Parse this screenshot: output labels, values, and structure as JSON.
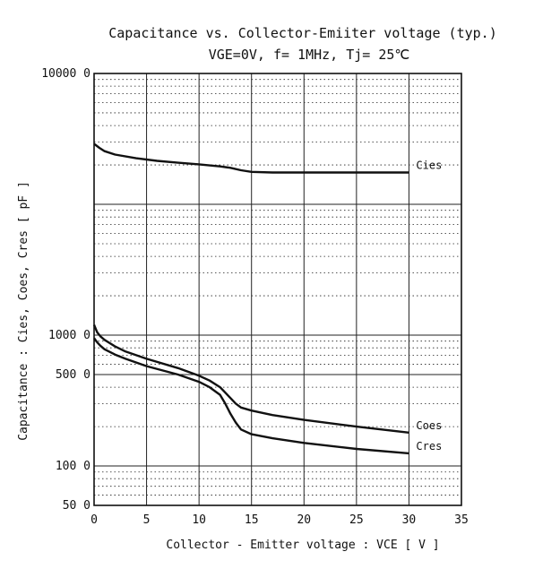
{
  "chart_data": {
    "type": "line",
    "title": "Capacitance vs. Collector-Emiiter voltage (typ.)",
    "subtitle": "VGE=0V, f= 1MHz, Tj= 25℃",
    "xlabel": "Collector - Emitter voltage : VCE [ V ]",
    "ylabel": "Capacitance : Cies, Coes, Cres [ pF ]",
    "xlim": [
      0,
      35
    ],
    "ylim": [
      50,
      100000
    ],
    "yscale": "log",
    "grid": true,
    "x_ticks": [
      0,
      5,
      10,
      15,
      20,
      25,
      30,
      35
    ],
    "x_tick_labels": [
      "0",
      "5",
      "10",
      "15",
      "20",
      "25",
      "30",
      "35"
    ],
    "y_ticks": [
      50,
      100,
      500,
      1000,
      100000
    ],
    "y_tick_labels": [
      "50 0",
      "100 0",
      "500 0",
      "1000 0",
      "10000 0"
    ],
    "series": [
      {
        "name": "Cies",
        "x": [
          0,
          0.5,
          1,
          2,
          4,
          6,
          8,
          10,
          12,
          13,
          14,
          15,
          17,
          20,
          25,
          30
        ],
        "y": [
          29000,
          27000,
          25500,
          24000,
          22500,
          21500,
          20800,
          20200,
          19500,
          19000,
          18200,
          17700,
          17500,
          17500,
          17500,
          17500
        ]
      },
      {
        "name": "Coes",
        "x": [
          0,
          0.3,
          0.6,
          1,
          2,
          3,
          5,
          8,
          10,
          11,
          12,
          13,
          13.5,
          14,
          15,
          17,
          20,
          25,
          30
        ],
        "y": [
          1200,
          1050,
          980,
          920,
          820,
          750,
          660,
          560,
          490,
          450,
          400,
          330,
          300,
          280,
          265,
          245,
          225,
          200,
          180
        ]
      },
      {
        "name": "Cres",
        "x": [
          0,
          0.3,
          0.6,
          1,
          2,
          3,
          5,
          8,
          10,
          11,
          12,
          12.5,
          13,
          13.5,
          14,
          15,
          17,
          20,
          25,
          30
        ],
        "y": [
          950,
          880,
          830,
          780,
          710,
          660,
          580,
          500,
          440,
          400,
          350,
          300,
          250,
          215,
          190,
          175,
          163,
          150,
          135,
          125
        ]
      }
    ]
  }
}
